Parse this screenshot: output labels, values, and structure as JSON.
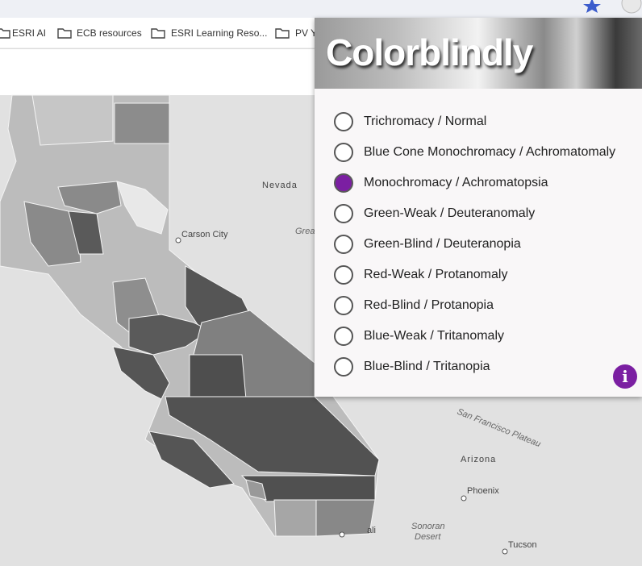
{
  "browser": {
    "bookmarks": [
      "ESRI AI",
      "ECB resources",
      "ESRI Learning Reso...",
      "PV Y"
    ]
  },
  "map": {
    "labels": {
      "nevada": "Nevada",
      "carson_city": "Carson City",
      "great": "Grea",
      "sf_plateau": "San Francisco Plateau",
      "arizona": "Arizona",
      "phoenix": "Phoenix",
      "sonoran_desert": [
        "Sonoran",
        "Desert"
      ],
      "tucson": "Tucson",
      "mexicali": "ali"
    }
  },
  "popup": {
    "title": "Colorblindly",
    "info_icon": "i",
    "options": [
      "Trichromacy / Normal",
      "Blue Cone Monochromacy / Achromatomaly",
      "Monochromacy / Achromatopsia",
      "Green-Weak / Deuteranomaly",
      "Green-Blind / Deuteranopia",
      "Red-Weak / Protanomaly",
      "Red-Blind / Protanopia",
      "Blue-Weak / Tritanomaly",
      "Blue-Blind / Tritanopia"
    ],
    "selected": 2
  }
}
